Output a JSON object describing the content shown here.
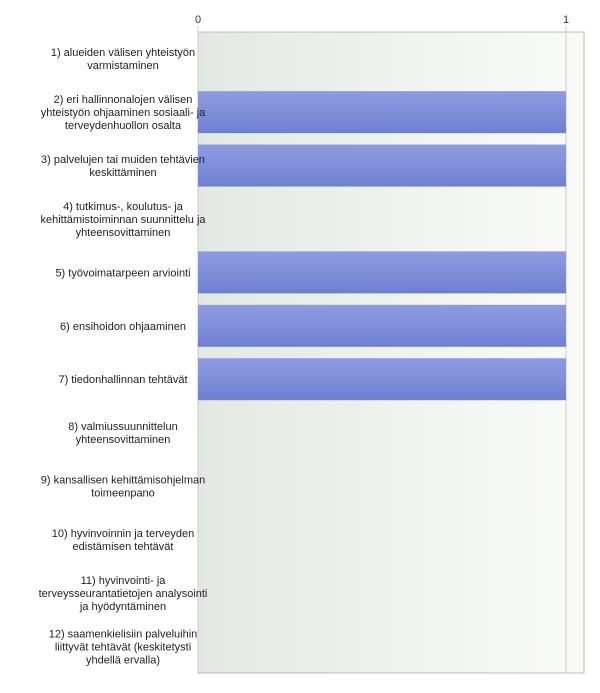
{
  "chart_data": {
    "type": "bar",
    "orientation": "horizontal",
    "title": "",
    "xlabel": "",
    "ylabel": "",
    "xlim": [
      0,
      1
    ],
    "x_ticks": [
      "0",
      "1"
    ],
    "grid": false,
    "bar_color": "#7f8fdb",
    "categories": [
      [
        "1) alueiden välisen yhteistyön",
        "varmistaminen"
      ],
      [
        "2) eri hallinnonalojen välisen",
        "yhteistyön ohjaaminen sosiaali- ja",
        "terveydenhuollon osalta"
      ],
      [
        "3) palvelujen tai muiden tehtävien",
        "keskittäminen"
      ],
      [
        "4) tutkimus-, koulutus- ja",
        "kehittämistoiminnan suunnittelu ja",
        "yhteensovittaminen"
      ],
      [
        "5) työvoimatarpeen arviointi"
      ],
      [
        "6) ensihoidon ohjaaminen"
      ],
      [
        "7) tiedonhallinnan tehtävät"
      ],
      [
        "8) valmiussuunnittelun",
        "yhteensovittaminen"
      ],
      [
        "9) kansallisen kehittämisohjelman",
        "toimeenpano"
      ],
      [
        "10) hyvinvoinnin ja terveyden",
        "edistämisen tehtävät"
      ],
      [
        "11) hyvinvointi- ja",
        "terveysseurantatietojen analysointi",
        "ja hyödyntäminen"
      ],
      [
        "12) saamenkielisiin palveluihin",
        "liittyvät tehtävät (keskitetysti",
        "yhdellä ervalla)"
      ]
    ],
    "values": [
      0,
      1,
      1,
      0,
      1,
      1,
      1,
      0,
      0,
      0,
      0,
      0
    ]
  }
}
